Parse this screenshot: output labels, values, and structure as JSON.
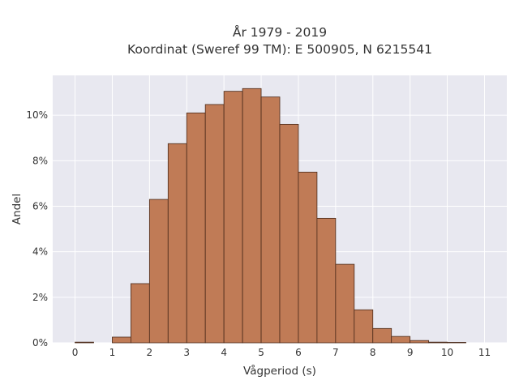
{
  "chart_data": {
    "type": "bar",
    "title_lines": [
      "År 1979 - 2019",
      "Koordinat (Sweref 99 TM): E 500905, N 6215541"
    ],
    "xlabel": "Vågperiod (s)",
    "ylabel": "Andel",
    "bin_width": 0.5,
    "bins": [
      {
        "x0": 0.0,
        "value": 0.0003
      },
      {
        "x0": 1.0,
        "value": 0.0025
      },
      {
        "x0": 1.5,
        "value": 0.026
      },
      {
        "x0": 2.0,
        "value": 0.063
      },
      {
        "x0": 2.5,
        "value": 0.0875
      },
      {
        "x0": 3.0,
        "value": 0.101
      },
      {
        "x0": 3.5,
        "value": 0.1047
      },
      {
        "x0": 4.0,
        "value": 0.1105
      },
      {
        "x0": 4.5,
        "value": 0.1117
      },
      {
        "x0": 5.0,
        "value": 0.108
      },
      {
        "x0": 5.5,
        "value": 0.096
      },
      {
        "x0": 6.0,
        "value": 0.075
      },
      {
        "x0": 6.5,
        "value": 0.0547
      },
      {
        "x0": 7.0,
        "value": 0.0345
      },
      {
        "x0": 7.5,
        "value": 0.0145
      },
      {
        "x0": 8.0,
        "value": 0.0063
      },
      {
        "x0": 8.5,
        "value": 0.0028
      },
      {
        "x0": 9.0,
        "value": 0.001
      },
      {
        "x0": 9.5,
        "value": 0.0003
      },
      {
        "x0": 10.0,
        "value": 0.0002
      }
    ],
    "xlim": [
      -0.6,
      11.6
    ],
    "ylim": [
      0,
      0.1175
    ],
    "xticks": [
      0,
      1,
      2,
      3,
      4,
      5,
      6,
      7,
      8,
      9,
      10,
      11
    ],
    "xtick_labels": [
      "0",
      "1",
      "2",
      "3",
      "4",
      "5",
      "6",
      "7",
      "8",
      "9",
      "10",
      "11"
    ],
    "yticks": [
      0,
      0.02,
      0.04,
      0.06,
      0.08,
      0.1
    ],
    "ytick_labels": [
      "0%",
      "2%",
      "4%",
      "6%",
      "8%",
      "10%"
    ],
    "grid": true,
    "colors": {
      "bar_fill": "#c07b56",
      "bar_edge": "#4a2a1a",
      "plot_background": "#e8e8f0",
      "grid": "#ffffff"
    }
  }
}
